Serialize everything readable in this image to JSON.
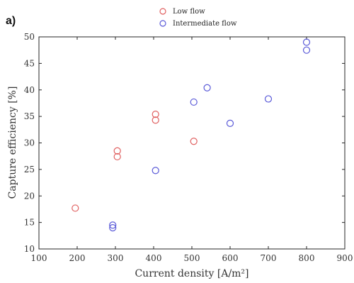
{
  "chart_data": {
    "type": "scatter",
    "panel_label": "a)",
    "xlabel": "Current density [A/m²]",
    "ylabel": "Capture efficiency [%]",
    "xlim": [
      100,
      900
    ],
    "ylim": [
      10,
      50
    ],
    "xticks": [
      "100",
      "200",
      "300",
      "400",
      "500",
      "600",
      "700",
      "800",
      "900"
    ],
    "yticks": [
      "10",
      "15",
      "20",
      "25",
      "30",
      "35",
      "40",
      "45",
      "50"
    ],
    "grid": false,
    "legend_position": "top-center",
    "series": [
      {
        "name": "Low flow",
        "color": "#e06060",
        "marker": "open-circle",
        "x": [
          195,
          305,
          305,
          405,
          405,
          505
        ],
        "y": [
          17.7,
          28.5,
          27.4,
          35.4,
          34.3,
          30.3
        ]
      },
      {
        "name": "Intermediate flow",
        "color": "#5a5ad8",
        "marker": "open-circle",
        "x": [
          293,
          293,
          405,
          505,
          540,
          600,
          700,
          800,
          800
        ],
        "y": [
          14.5,
          14.0,
          24.8,
          37.7,
          40.4,
          33.7,
          38.3,
          49.0,
          47.5
        ]
      }
    ]
  }
}
